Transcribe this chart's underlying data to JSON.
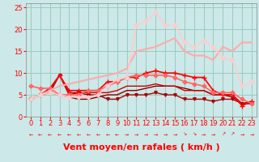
{
  "background_color": "#cce8e8",
  "grid_color": "#99ccbb",
  "xlabel": "Vent moyen/en rafales ( km/h )",
  "xlim": [
    -0.5,
    23.5
  ],
  "ylim": [
    0,
    26
  ],
  "yticks": [
    0,
    5,
    10,
    15,
    20,
    25
  ],
  "xticks": [
    0,
    1,
    2,
    3,
    4,
    5,
    6,
    7,
    8,
    9,
    10,
    11,
    12,
    13,
    14,
    15,
    16,
    17,
    18,
    19,
    20,
    21,
    22,
    23
  ],
  "lines": [
    {
      "x": [
        0,
        1,
        2,
        3,
        4,
        5,
        6,
        7,
        8,
        9,
        10,
        11,
        12,
        13,
        14,
        15,
        16,
        17,
        18,
        19,
        20,
        21,
        22,
        23
      ],
      "y": [
        4,
        5,
        5.5,
        5,
        4.5,
        4,
        4,
        4.5,
        5,
        5,
        6,
        6,
        6.5,
        7,
        7,
        7,
        6.5,
        6,
        6,
        5,
        5,
        4.5,
        3,
        3
      ],
      "color": "#880000",
      "lw": 1.0,
      "marker": null,
      "ms": 0
    },
    {
      "x": [
        0,
        1,
        2,
        3,
        4,
        5,
        6,
        7,
        8,
        9,
        10,
        11,
        12,
        13,
        14,
        15,
        16,
        17,
        18,
        19,
        20,
        21,
        22,
        23
      ],
      "y": [
        4,
        5,
        5.5,
        9.5,
        5,
        5.5,
        5,
        5,
        4,
        4,
        5,
        5,
        5,
        5.5,
        5,
        5,
        4,
        4,
        4,
        3.5,
        4,
        4,
        3,
        3
      ],
      "color": "#aa0000",
      "lw": 1.0,
      "marker": "v",
      "ms": 2.5
    },
    {
      "x": [
        0,
        1,
        2,
        3,
        4,
        5,
        6,
        7,
        8,
        9,
        10,
        11,
        12,
        13,
        14,
        15,
        16,
        17,
        18,
        19,
        20,
        21,
        22,
        23
      ],
      "y": [
        4,
        5,
        6,
        9.5,
        5.5,
        5.5,
        5.5,
        5.5,
        5.5,
        6,
        7,
        7,
        7,
        7.5,
        7,
        7,
        6,
        6,
        6,
        5,
        5,
        5,
        3,
        3.5
      ],
      "color": "#cc0000",
      "lw": 1.0,
      "marker": null,
      "ms": 0
    },
    {
      "x": [
        0,
        1,
        2,
        3,
        4,
        5,
        6,
        7,
        8,
        9,
        10,
        11,
        12,
        13,
        14,
        15,
        16,
        17,
        18,
        19,
        20,
        21,
        22,
        23
      ],
      "y": [
        4,
        5,
        6.5,
        9.5,
        6,
        6,
        6,
        6,
        8,
        8,
        9,
        9,
        10,
        10.5,
        10,
        10,
        9.5,
        9,
        9,
        6,
        5,
        5,
        2.5,
        3.5
      ],
      "color": "#ff0000",
      "lw": 1.2,
      "marker": "+",
      "ms": 4
    },
    {
      "x": [
        0,
        1,
        2,
        3,
        4,
        5,
        6,
        7,
        8,
        9,
        10,
        11,
        12,
        13,
        14,
        15,
        16,
        17,
        18,
        19,
        20,
        21,
        22,
        23
      ],
      "y": [
        7,
        6.5,
        6.5,
        5,
        5,
        5,
        6,
        6,
        7,
        8,
        9,
        9.5,
        9.5,
        9.5,
        9.5,
        9,
        8,
        7.5,
        7,
        5.5,
        5.5,
        5.5,
        4,
        3
      ],
      "color": "#ff6666",
      "lw": 1.2,
      "marker": "D",
      "ms": 2.5
    },
    {
      "x": [
        0,
        1,
        2,
        3,
        4,
        5,
        6,
        7,
        8,
        9,
        10,
        11,
        12,
        13,
        14,
        15,
        16,
        17,
        18,
        19,
        20,
        21,
        22,
        23
      ],
      "y": [
        4,
        5,
        6,
        7,
        7.5,
        8,
        8.5,
        9,
        9.5,
        10,
        11,
        15,
        15.5,
        16,
        17,
        18,
        15,
        14,
        14,
        13,
        16,
        15,
        17,
        17
      ],
      "color": "#ffaaaa",
      "lw": 1.5,
      "marker": null,
      "ms": 0
    },
    {
      "x": [
        0,
        1,
        2,
        3,
        4,
        5,
        6,
        7,
        8,
        9,
        10,
        11,
        12,
        13,
        14,
        15,
        16,
        17,
        18,
        19,
        20,
        21,
        22,
        23
      ],
      "y": [
        4,
        5,
        5.5,
        5,
        4.5,
        4.5,
        4.5,
        5,
        7,
        8.5,
        9,
        21,
        22,
        24,
        21,
        21,
        17,
        16,
        17.5,
        16,
        13.5,
        13,
        7,
        8
      ],
      "color": "#ffcccc",
      "lw": 1.2,
      "marker": "D",
      "ms": 2.5
    }
  ],
  "xlabel_color": "#ff0000",
  "xlabel_fontsize": 8,
  "tick_color": "#ff0000",
  "tick_fontsize": 6,
  "spine_color": "#888888"
}
